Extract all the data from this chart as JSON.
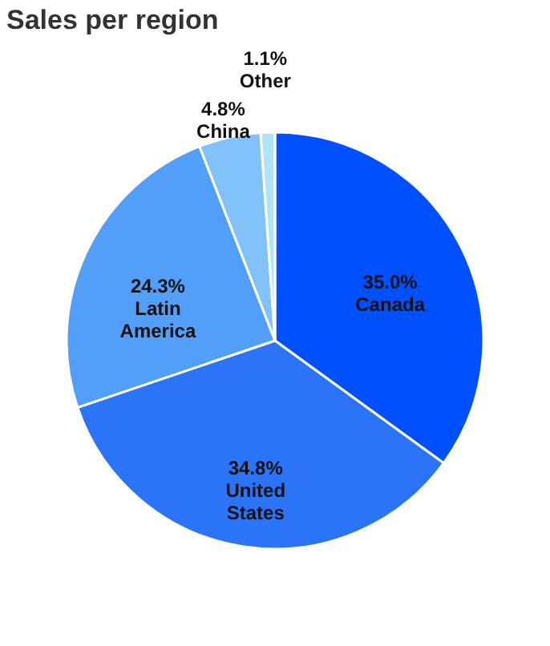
{
  "chart_data": {
    "type": "pie",
    "title": "Sales per region",
    "categories": [
      "Canada",
      "United States",
      "Latin America",
      "China",
      "Other"
    ],
    "values": [
      35.0,
      34.8,
      24.3,
      4.8,
      1.1
    ],
    "colors": [
      "#0050ff",
      "#2b74f8",
      "#519ff8",
      "#82c2fb",
      "#b0e4fb"
    ],
    "value_labels": [
      "35.0%",
      "34.8%",
      "24.3%",
      "4.8%",
      "1.1%"
    ],
    "legend": false
  }
}
